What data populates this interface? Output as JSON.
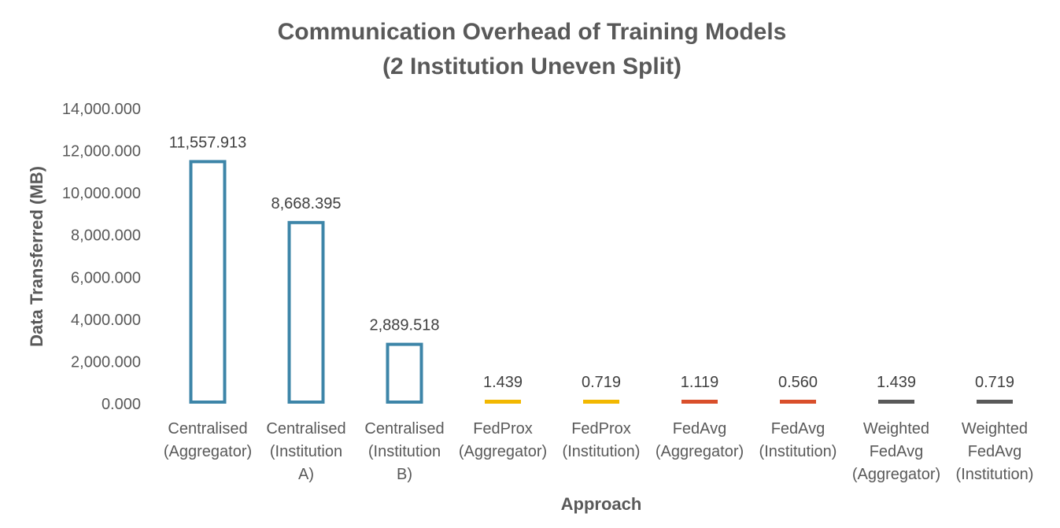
{
  "chart_data": {
    "type": "bar",
    "title": [
      "Communication Overhead of Training Models",
      "(2 Institution Uneven Split)"
    ],
    "xlabel": "Approach",
    "ylabel": "Data Transferred (MB)",
    "ylim": [
      0,
      14000
    ],
    "yticks": [
      "0.000",
      "2,000.000",
      "4,000.000",
      "6,000.000",
      "8,000.000",
      "10,000.000",
      "12,000.000",
      "14,000.000"
    ],
    "grid": false,
    "legend": "none",
    "categories": [
      [
        "Centralised",
        "(Aggregator)"
      ],
      [
        "Centralised",
        "(Institution",
        "A)"
      ],
      [
        "Centralised",
        "(Institution",
        "B)"
      ],
      [
        "FedProx",
        "(Aggregator)"
      ],
      [
        "FedProx",
        "(Institution)"
      ],
      [
        "FedAvg",
        "(Aggregator)"
      ],
      [
        "FedAvg",
        "(Institution)"
      ],
      [
        "Weighted",
        "FedAvg",
        "(Aggregator)"
      ],
      [
        "Weighted",
        "FedAvg",
        "(Institution)"
      ]
    ],
    "values": [
      11557.913,
      8668.395,
      2889.518,
      1.439,
      0.719,
      1.119,
      0.56,
      1.439,
      0.719
    ],
    "data_labels": [
      "11,557.913",
      "8,668.395",
      "2,889.518",
      "1.439",
      "0.719",
      "1.119",
      "0.560",
      "1.439",
      "0.719"
    ],
    "colors": [
      "#3d85a8",
      "#3d85a8",
      "#3d85a8",
      "#f2b800",
      "#f2b800",
      "#d94f2b",
      "#d94f2b",
      "#595959",
      "#595959"
    ],
    "bar_style": "outline"
  }
}
